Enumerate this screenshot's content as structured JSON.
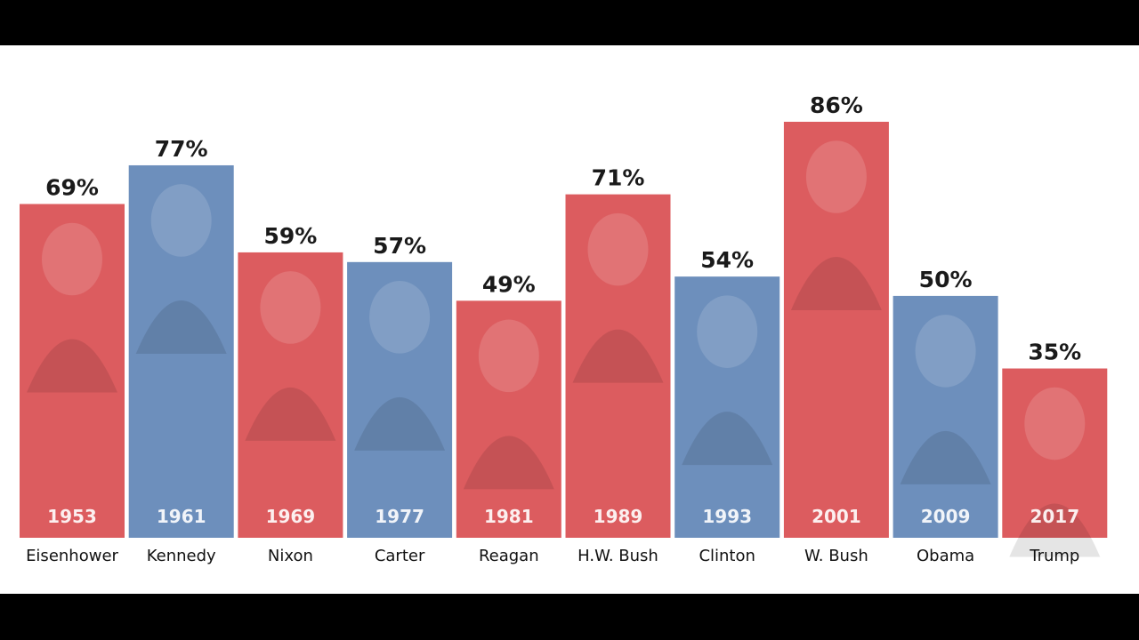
{
  "chart_data": {
    "type": "bar",
    "title": "",
    "xlabel": "",
    "ylabel": "",
    "ylim": [
      0,
      100
    ],
    "grid": false,
    "legend": "none",
    "categories": [
      "Eisenhower",
      "Kennedy",
      "Nixon",
      "Carter",
      "Reagan",
      "H.W. Bush",
      "Clinton",
      "W. Bush",
      "Obama",
      "Trump"
    ],
    "years": [
      "1953",
      "1961",
      "1969",
      "1977",
      "1981",
      "1989",
      "1993",
      "2001",
      "2009",
      "2017"
    ],
    "values": [
      69,
      77,
      59,
      57,
      49,
      71,
      54,
      86,
      50,
      35
    ],
    "value_labels": [
      "69%",
      "77%",
      "59%",
      "57%",
      "49%",
      "71%",
      "54%",
      "86%",
      "50%",
      "35%"
    ],
    "party": [
      "R",
      "D",
      "R",
      "D",
      "R",
      "R",
      "D",
      "R",
      "D",
      "R"
    ],
    "colors": {
      "R": "#dc5c5f",
      "D": "#6d8fbc"
    }
  }
}
